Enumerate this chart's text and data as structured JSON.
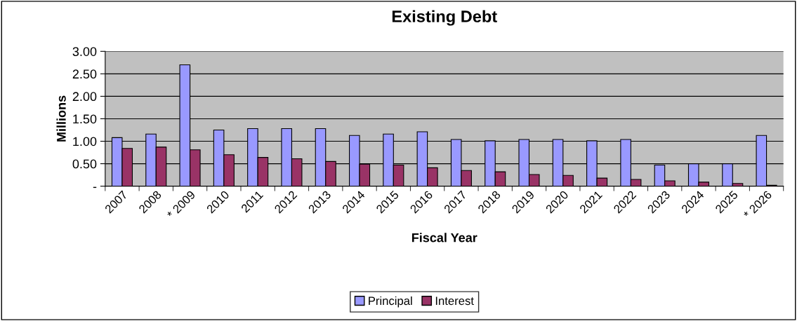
{
  "chart_data": {
    "type": "bar",
    "title": "Existing Debt",
    "xlabel": "Fiscal Year",
    "ylabel": "Millions",
    "categories": [
      "2007",
      "2008",
      "* 2009",
      "2010",
      "2011",
      "2012",
      "2013",
      "2014",
      "2015",
      "2016",
      "2017",
      "2018",
      "2019",
      "2020",
      "2021",
      "2022",
      "2023",
      "2024",
      "2025",
      "* 2026"
    ],
    "series": [
      {
        "name": "Principal",
        "color": "#9999ff",
        "values": [
          1.08,
          1.16,
          2.7,
          1.25,
          1.28,
          1.28,
          1.28,
          1.13,
          1.16,
          1.21,
          1.04,
          1.01,
          1.04,
          1.04,
          1.01,
          1.04,
          0.47,
          0.5,
          0.5,
          1.13
        ]
      },
      {
        "name": "Interest",
        "color": "#993366",
        "values": [
          0.84,
          0.87,
          0.81,
          0.7,
          0.64,
          0.61,
          0.55,
          0.49,
          0.47,
          0.41,
          0.35,
          0.32,
          0.26,
          0.24,
          0.18,
          0.15,
          0.12,
          0.09,
          0.06,
          0.02
        ]
      }
    ],
    "ylim": [
      0,
      3
    ],
    "yticks": [
      {
        "value": 0,
        "label": "-"
      },
      {
        "value": 0.5,
        "label": "0.50"
      },
      {
        "value": 1,
        "label": "1.00"
      },
      {
        "value": 1.5,
        "label": "1.50"
      },
      {
        "value": 2,
        "label": "2.00"
      },
      {
        "value": 2.5,
        "label": "2.50"
      },
      {
        "value": 3,
        "label": "3.00"
      }
    ],
    "grid": "y",
    "legend": "bottom"
  }
}
